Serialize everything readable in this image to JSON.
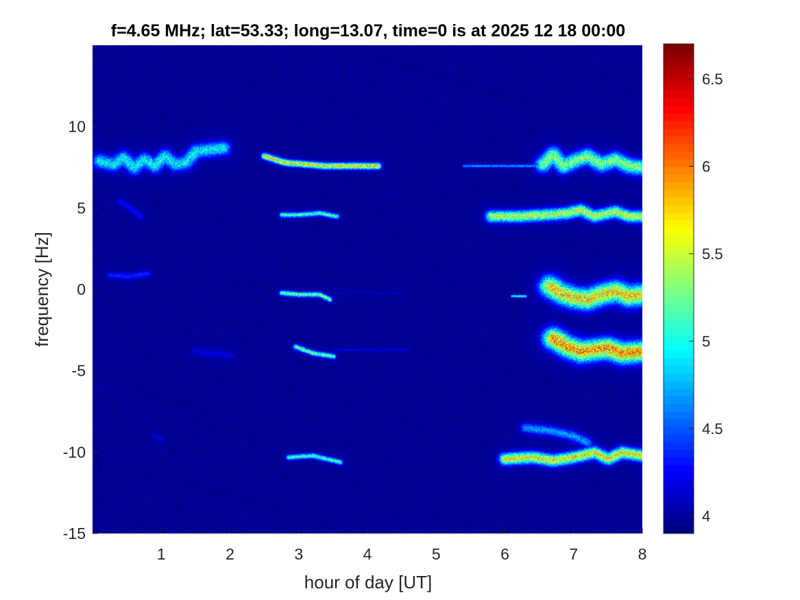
{
  "chart_data": {
    "type": "heatmap",
    "title": "f=4.65 MHz;  lat=53.33; long=13.07, time=0 is at 2025 12 18 00:00",
    "xlabel": "hour of day [UT]",
    "ylabel": "frequency [Hz]",
    "xlim": [
      0,
      8
    ],
    "ylim": [
      -15,
      15
    ],
    "x_ticks": [
      "1",
      "2",
      "3",
      "4",
      "5",
      "6",
      "7",
      "8"
    ],
    "y_ticks": [
      "-15",
      "-10",
      "-5",
      "0",
      "5",
      "10"
    ],
    "colorbar": {
      "colormap": "jet",
      "range": [
        3.9,
        6.7
      ],
      "ticks": [
        "4",
        "4.5",
        "5",
        "5.5",
        "6",
        "6.5"
      ]
    },
    "background_level": 3.95,
    "traces": [
      {
        "points": [
          [
            0.1,
            7.9
          ],
          [
            0.3,
            7.7
          ],
          [
            0.45,
            8.1
          ],
          [
            0.6,
            7.5
          ],
          [
            0.75,
            8.0
          ],
          [
            0.9,
            7.6
          ],
          [
            1.05,
            8.2
          ],
          [
            1.2,
            7.7
          ],
          [
            1.35,
            7.8
          ],
          [
            1.5,
            8.5
          ],
          [
            1.7,
            8.6
          ],
          [
            1.9,
            8.7
          ]
        ],
        "level": 5.1,
        "spread": 0.55
      },
      {
        "points": [
          [
            2.5,
            8.2
          ],
          [
            2.8,
            7.8
          ],
          [
            3.1,
            7.7
          ],
          [
            3.4,
            7.6
          ],
          [
            3.7,
            7.6
          ],
          [
            4.0,
            7.6
          ],
          [
            4.15,
            7.6
          ]
        ],
        "level": 5.9,
        "spread": 0.25
      },
      {
        "points": [
          [
            5.4,
            7.6
          ],
          [
            5.8,
            7.6
          ],
          [
            6.2,
            7.6
          ],
          [
            6.6,
            7.6
          ]
        ],
        "level": 4.8,
        "spread": 0.12
      },
      {
        "points": [
          [
            6.55,
            7.7
          ],
          [
            6.7,
            8.3
          ],
          [
            6.85,
            7.6
          ],
          [
            7.0,
            7.9
          ],
          [
            7.2,
            8.2
          ],
          [
            7.4,
            7.7
          ],
          [
            7.6,
            8.0
          ],
          [
            7.8,
            7.6
          ],
          [
            8.0,
            7.5
          ]
        ],
        "level": 5.5,
        "spread": 0.6
      },
      {
        "points": [
          [
            0.4,
            5.4
          ],
          [
            0.55,
            5.0
          ],
          [
            0.7,
            4.5
          ]
        ],
        "level": 4.3,
        "spread": 0.25
      },
      {
        "points": [
          [
            2.75,
            4.6
          ],
          [
            3.0,
            4.6
          ],
          [
            3.3,
            4.7
          ],
          [
            3.55,
            4.5
          ]
        ],
        "level": 5.3,
        "spread": 0.2
      },
      {
        "points": [
          [
            5.8,
            4.5
          ],
          [
            6.2,
            4.5
          ],
          [
            6.6,
            4.6
          ],
          [
            6.9,
            4.7
          ],
          [
            7.1,
            4.9
          ],
          [
            7.3,
            4.5
          ],
          [
            7.6,
            4.8
          ],
          [
            7.8,
            4.5
          ],
          [
            8.0,
            4.5
          ]
        ],
        "level": 5.7,
        "spread": 0.45
      },
      {
        "points": [
          [
            0.25,
            0.9
          ],
          [
            0.5,
            0.8
          ],
          [
            0.8,
            1.0
          ]
        ],
        "level": 4.4,
        "spread": 0.25
      },
      {
        "points": [
          [
            2.75,
            -0.2
          ],
          [
            3.0,
            -0.3
          ],
          [
            3.3,
            -0.3
          ],
          [
            3.45,
            -0.6
          ]
        ],
        "level": 5.4,
        "spread": 0.2
      },
      {
        "points": [
          [
            3.5,
            -0.2
          ],
          [
            4.5,
            -0.2
          ]
        ],
        "level": 4.1,
        "spread": 0.1
      },
      {
        "points": [
          [
            6.1,
            -0.4
          ],
          [
            6.3,
            -0.4
          ]
        ],
        "level": 5.3,
        "spread": 0.1
      },
      {
        "points": [
          [
            6.65,
            0.2
          ],
          [
            6.8,
            -0.2
          ],
          [
            7.0,
            -0.5
          ],
          [
            7.2,
            -0.6
          ],
          [
            7.4,
            -0.3
          ],
          [
            7.6,
            -0.1
          ],
          [
            7.8,
            -0.4
          ],
          [
            8.0,
            -0.3
          ]
        ],
        "level": 6.0,
        "spread": 0.8
      },
      {
        "points": [
          [
            1.5,
            -3.8
          ],
          [
            2.0,
            -4.0
          ]
        ],
        "level": 4.2,
        "spread": 0.3
      },
      {
        "points": [
          [
            2.95,
            -3.5
          ],
          [
            3.2,
            -3.9
          ],
          [
            3.5,
            -4.1
          ]
        ],
        "level": 5.4,
        "spread": 0.2
      },
      {
        "points": [
          [
            3.5,
            -3.7
          ],
          [
            4.6,
            -3.7
          ]
        ],
        "level": 4.2,
        "spread": 0.1
      },
      {
        "points": [
          [
            6.7,
            -3.0
          ],
          [
            6.9,
            -3.5
          ],
          [
            7.1,
            -3.8
          ],
          [
            7.3,
            -3.7
          ],
          [
            7.5,
            -3.6
          ],
          [
            7.7,
            -3.9
          ],
          [
            8.0,
            -3.8
          ]
        ],
        "level": 6.2,
        "spread": 0.8
      },
      {
        "points": [
          [
            0.9,
            -9.0
          ],
          [
            1.0,
            -9.2
          ]
        ],
        "level": 4.2,
        "spread": 0.2
      },
      {
        "points": [
          [
            2.85,
            -10.3
          ],
          [
            3.2,
            -10.2
          ],
          [
            3.6,
            -10.6
          ]
        ],
        "level": 5.3,
        "spread": 0.2
      },
      {
        "points": [
          [
            6.0,
            -10.4
          ],
          [
            6.4,
            -10.3
          ],
          [
            6.7,
            -10.5
          ],
          [
            7.0,
            -10.3
          ],
          [
            7.3,
            -10.0
          ],
          [
            7.5,
            -10.4
          ],
          [
            7.7,
            -10.0
          ],
          [
            8.0,
            -10.2
          ]
        ],
        "level": 5.9,
        "spread": 0.45
      },
      {
        "points": [
          [
            6.3,
            -8.5
          ],
          [
            6.7,
            -8.7
          ],
          [
            7.0,
            -9.0
          ],
          [
            7.2,
            -9.4
          ]
        ],
        "level": 4.8,
        "spread": 0.4
      }
    ]
  }
}
